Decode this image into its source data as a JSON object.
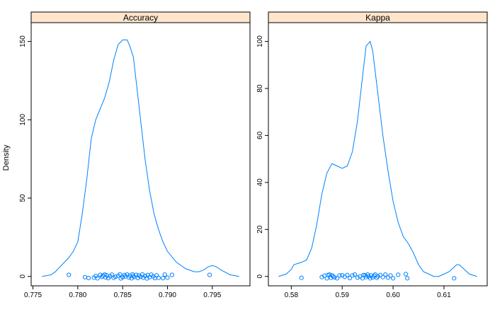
{
  "chart_data": {
    "type": "line",
    "ylabel": "Density",
    "colors": {
      "curve": "#0080ff",
      "strip": "#ffe5cc",
      "points": "#0080ff"
    },
    "panels": [
      {
        "title": "Accuracy",
        "xlim": [
          0.7748,
          0.7992
        ],
        "ylim": [
          -6,
          162
        ],
        "xticks": [
          "0.775",
          "0.780",
          "0.785",
          "0.790",
          "0.795"
        ],
        "yticks": [
          "0",
          "50",
          "100",
          "150"
        ],
        "density": {
          "x": [
            0.776,
            0.777,
            0.7775,
            0.778,
            0.779,
            0.7795,
            0.78,
            0.7805,
            0.781,
            0.7815,
            0.782,
            0.7825,
            0.783,
            0.7835,
            0.784,
            0.7845,
            0.785,
            0.7855,
            0.7858,
            0.7862,
            0.7865,
            0.787,
            0.7875,
            0.788,
            0.7885,
            0.789,
            0.7895,
            0.79,
            0.791,
            0.792,
            0.793,
            0.7935,
            0.794,
            0.7945,
            0.795,
            0.7955,
            0.796,
            0.797,
            0.798
          ],
          "y": [
            0,
            1,
            3,
            6,
            12,
            16,
            22,
            40,
            62,
            88,
            100,
            107,
            114,
            124,
            138,
            148,
            151,
            151,
            147,
            140,
            125,
            100,
            75,
            55,
            40,
            30,
            22,
            16,
            9,
            5,
            3,
            3,
            4,
            6,
            7,
            6,
            4,
            1,
            0
          ]
        },
        "points": {
          "x": [
            0.779,
            0.7808,
            0.7812,
            0.7818,
            0.782,
            0.7822,
            0.7825,
            0.7827,
            0.7828,
            0.783,
            0.7831,
            0.7832,
            0.7834,
            0.7836,
            0.7838,
            0.784,
            0.7842,
            0.7845,
            0.7847,
            0.7848,
            0.785,
            0.7852,
            0.7853,
            0.7855,
            0.7857,
            0.7858,
            0.786,
            0.7861,
            0.7862,
            0.7863,
            0.7865,
            0.7867,
            0.7868,
            0.787,
            0.7872,
            0.7873,
            0.7875,
            0.7877,
            0.7878,
            0.788,
            0.7882,
            0.7884,
            0.7886,
            0.7888,
            0.789,
            0.7895,
            0.7897,
            0.79,
            0.7905,
            0.7947
          ],
          "y": [
            1.0,
            -0.5,
            -1.0,
            -0.8,
            0.3,
            -1.2,
            1.0,
            -0.3,
            0.6,
            1.2,
            -0.6,
            0.8,
            -1.1,
            0.1,
            1.1,
            -0.9,
            -0.2,
            0.4,
            1.3,
            -1.3,
            -0.5,
            0.9,
            0.0,
            1.2,
            -0.7,
            0.5,
            -1.2,
            1.3,
            0.2,
            -0.4,
            1.0,
            -1.0,
            0.6,
            -0.2,
            1.3,
            -0.8,
            0.3,
            -1.3,
            0.9,
            -0.5,
            1.1,
            0.0,
            -1.1,
            0.7,
            -0.9,
            -1.1,
            1.2,
            -0.8,
            1.0,
            1.0
          ]
        }
      },
      {
        "title": "Kappa",
        "xlim": [
          0.5755,
          0.6185
        ],
        "ylim": [
          -4,
          108
        ],
        "xticks": [
          "0.58",
          "0.59",
          "0.60",
          "0.61"
        ],
        "yticks": [
          "0",
          "20",
          "40",
          "60",
          "80",
          "100"
        ],
        "density": {
          "x": [
            0.5775,
            0.579,
            0.58,
            0.5805,
            0.582,
            0.583,
            0.584,
            0.585,
            0.586,
            0.587,
            0.588,
            0.589,
            0.59,
            0.591,
            0.5915,
            0.592,
            0.593,
            0.594,
            0.5947,
            0.5955,
            0.596,
            0.597,
            0.598,
            0.599,
            0.6,
            0.601,
            0.602,
            0.603,
            0.604,
            0.605,
            0.606,
            0.607,
            0.608,
            0.609,
            0.61,
            0.611,
            0.612,
            0.6125,
            0.613,
            0.614,
            0.615,
            0.6165
          ],
          "y": [
            0,
            1,
            3,
            5,
            6,
            7,
            12,
            22,
            35,
            44,
            48,
            47,
            46,
            47,
            50,
            53,
            66,
            85,
            98,
            100,
            96,
            78,
            60,
            45,
            32,
            23,
            17,
            14,
            10,
            5,
            2,
            1,
            0,
            0,
            1,
            2,
            4,
            5,
            5,
            3,
            1,
            0
          ]
        },
        "points": {
          "x": [
            0.582,
            0.586,
            0.5865,
            0.587,
            0.5872,
            0.5875,
            0.5878,
            0.588,
            0.5882,
            0.5885,
            0.589,
            0.5895,
            0.59,
            0.5905,
            0.591,
            0.5915,
            0.592,
            0.5925,
            0.593,
            0.5935,
            0.594,
            0.5942,
            0.5945,
            0.5947,
            0.595,
            0.5952,
            0.5955,
            0.5957,
            0.596,
            0.5963,
            0.5965,
            0.5968,
            0.597,
            0.5975,
            0.598,
            0.5985,
            0.599,
            0.5995,
            0.6,
            0.601,
            0.6025,
            0.6028,
            0.612
          ],
          "y": [
            -0.6,
            -0.3,
            0.3,
            -0.8,
            0.6,
            0.8,
            -0.6,
            0.5,
            0.0,
            -0.4,
            -0.8,
            0.4,
            0.5,
            -0.2,
            0.6,
            -0.7,
            0.4,
            0.8,
            -0.5,
            0.0,
            -0.8,
            0.6,
            0.5,
            -0.3,
            0.8,
            0.0,
            -0.8,
            0.4,
            -0.4,
            0.3,
            0.8,
            -0.6,
            0.0,
            0.6,
            -0.3,
            0.8,
            -0.5,
            0.4,
            -0.8,
            0.7,
            1.0,
            -0.8,
            -0.8
          ]
        }
      }
    ]
  }
}
